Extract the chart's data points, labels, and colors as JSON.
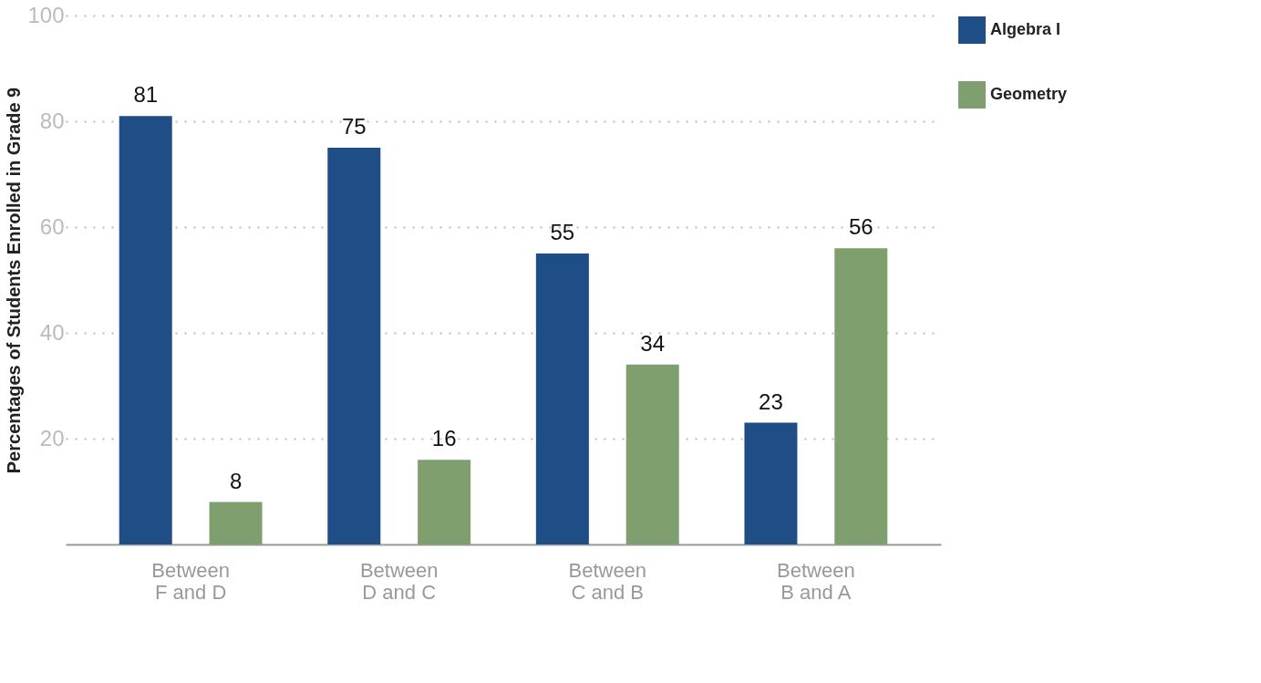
{
  "chart_data": {
    "type": "bar",
    "ylabel": "Percentages of Students Enrolled in Grade 9",
    "categories": [
      "Between F and D",
      "Between D and C",
      "Between C and B",
      "Between B and A"
    ],
    "series": [
      {
        "name": "Algebra I",
        "color": "#1f4e87",
        "values": [
          81,
          75,
          55,
          23
        ]
      },
      {
        "name": "Geometry",
        "color": "#7f9f6f",
        "values": [
          8,
          16,
          34,
          56
        ]
      }
    ],
    "ylim": [
      0,
      100
    ],
    "yticks": [
      20,
      40,
      60,
      80,
      100
    ],
    "grid": "y",
    "legend": "top right",
    "data_labels": true
  }
}
